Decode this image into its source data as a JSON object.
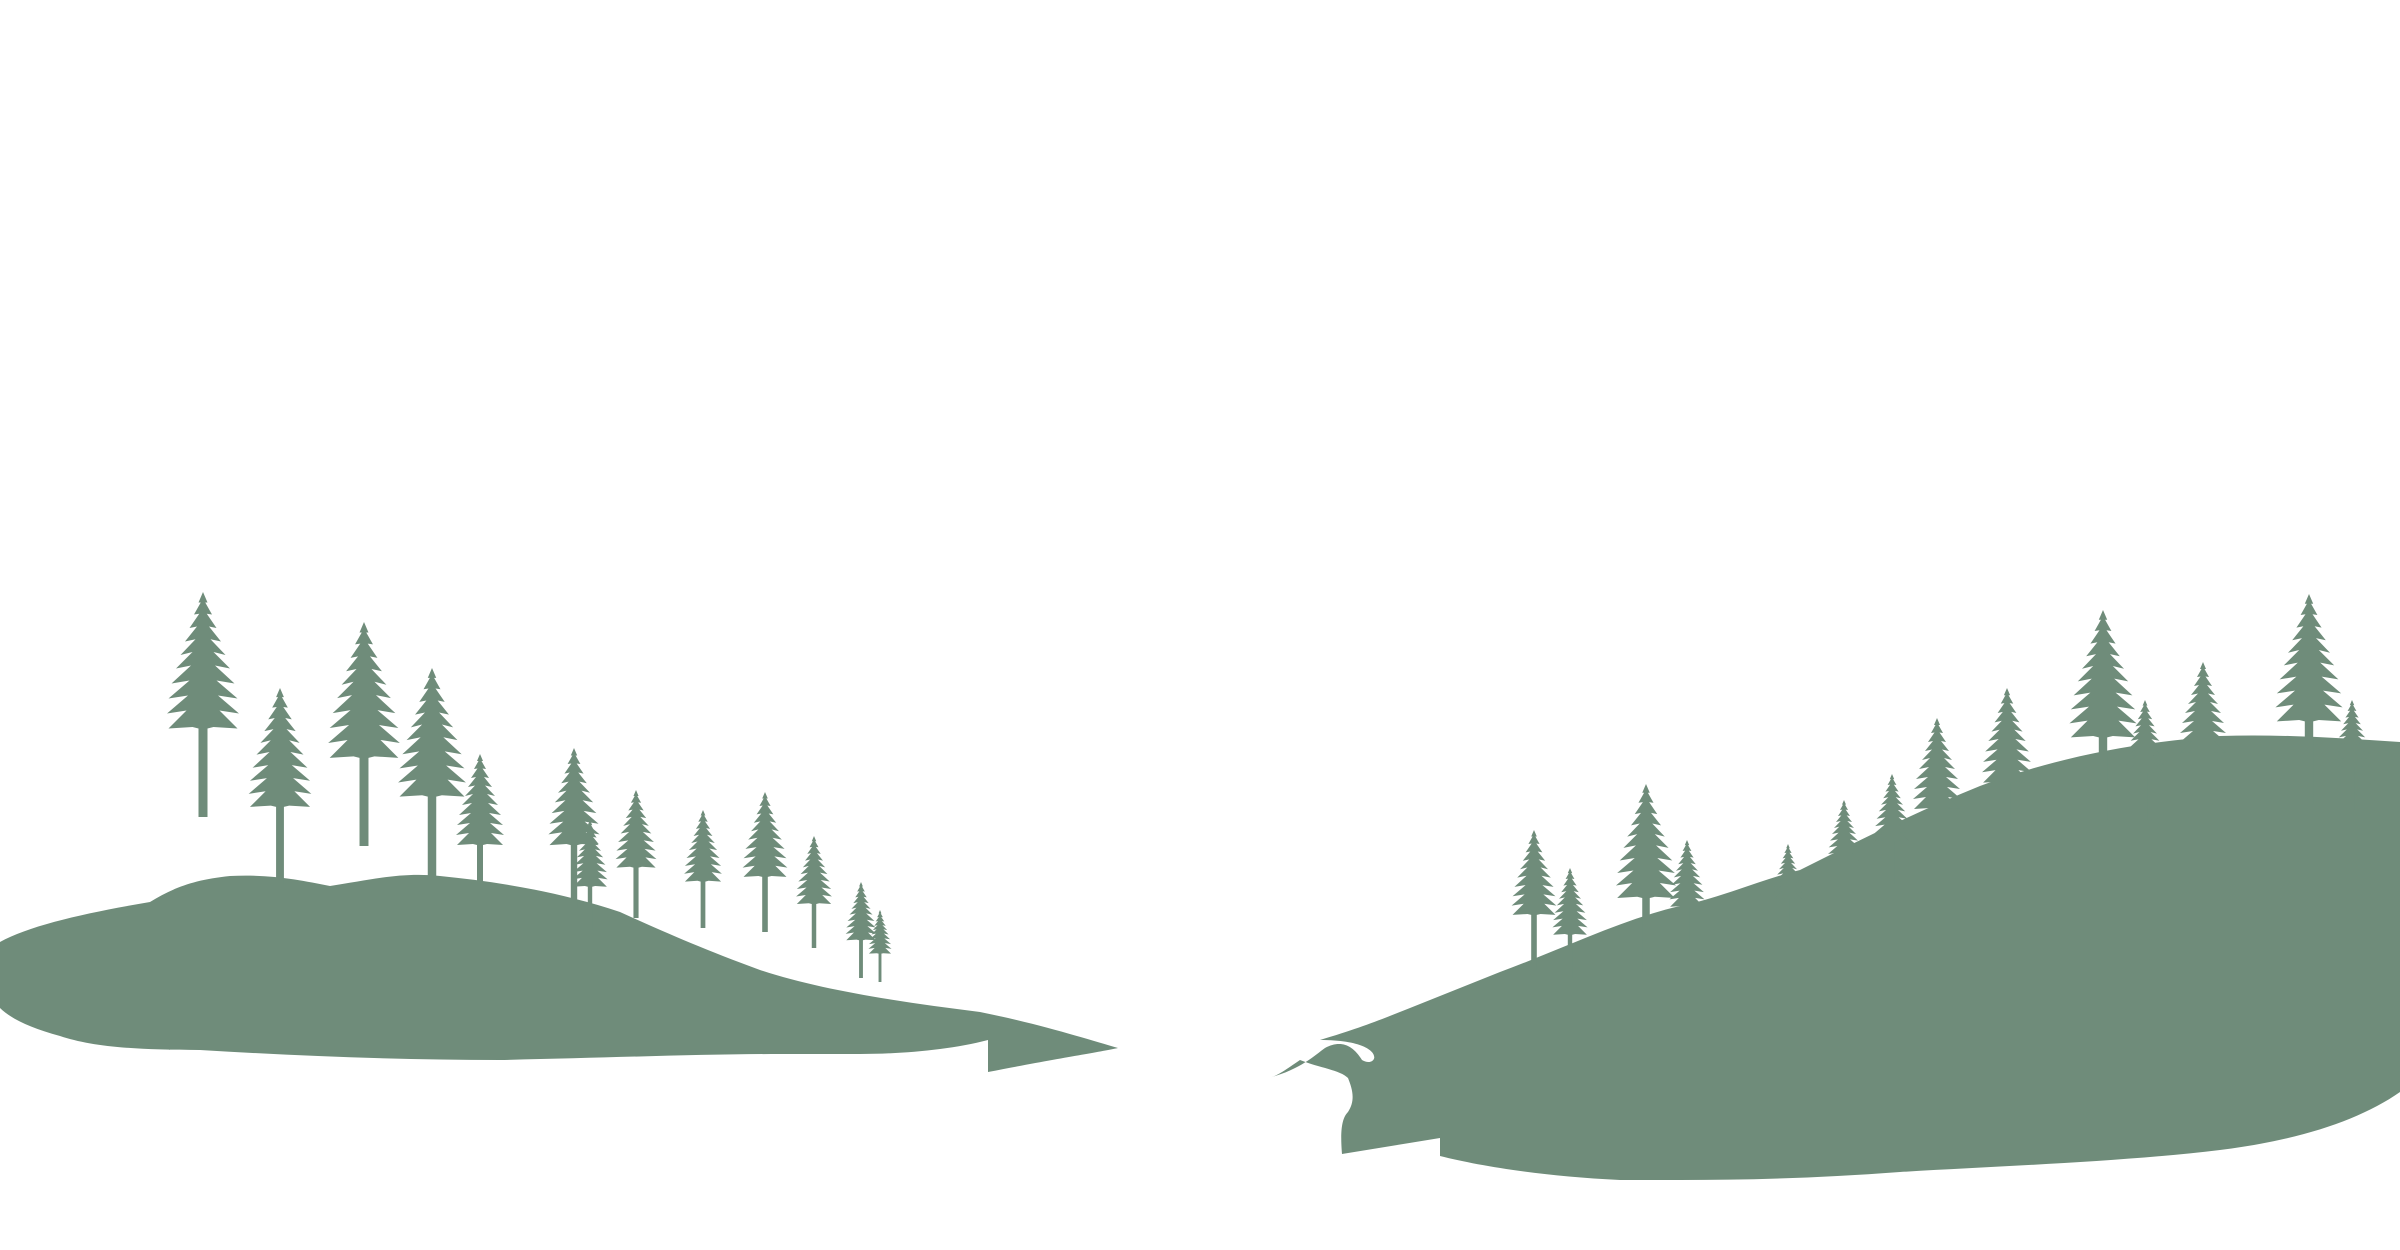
{
  "scene": {
    "background_color": "#ffffff",
    "silhouette_color": "#6f8c7a",
    "left_island": {
      "icon": "island-silhouette-icon",
      "tree_icon": "pine-tree-icon",
      "tree_count": 13
    },
    "right_island": {
      "icon": "island-silhouette-icon",
      "tree_icon": "pine-tree-icon",
      "tree_count": 14
    }
  }
}
